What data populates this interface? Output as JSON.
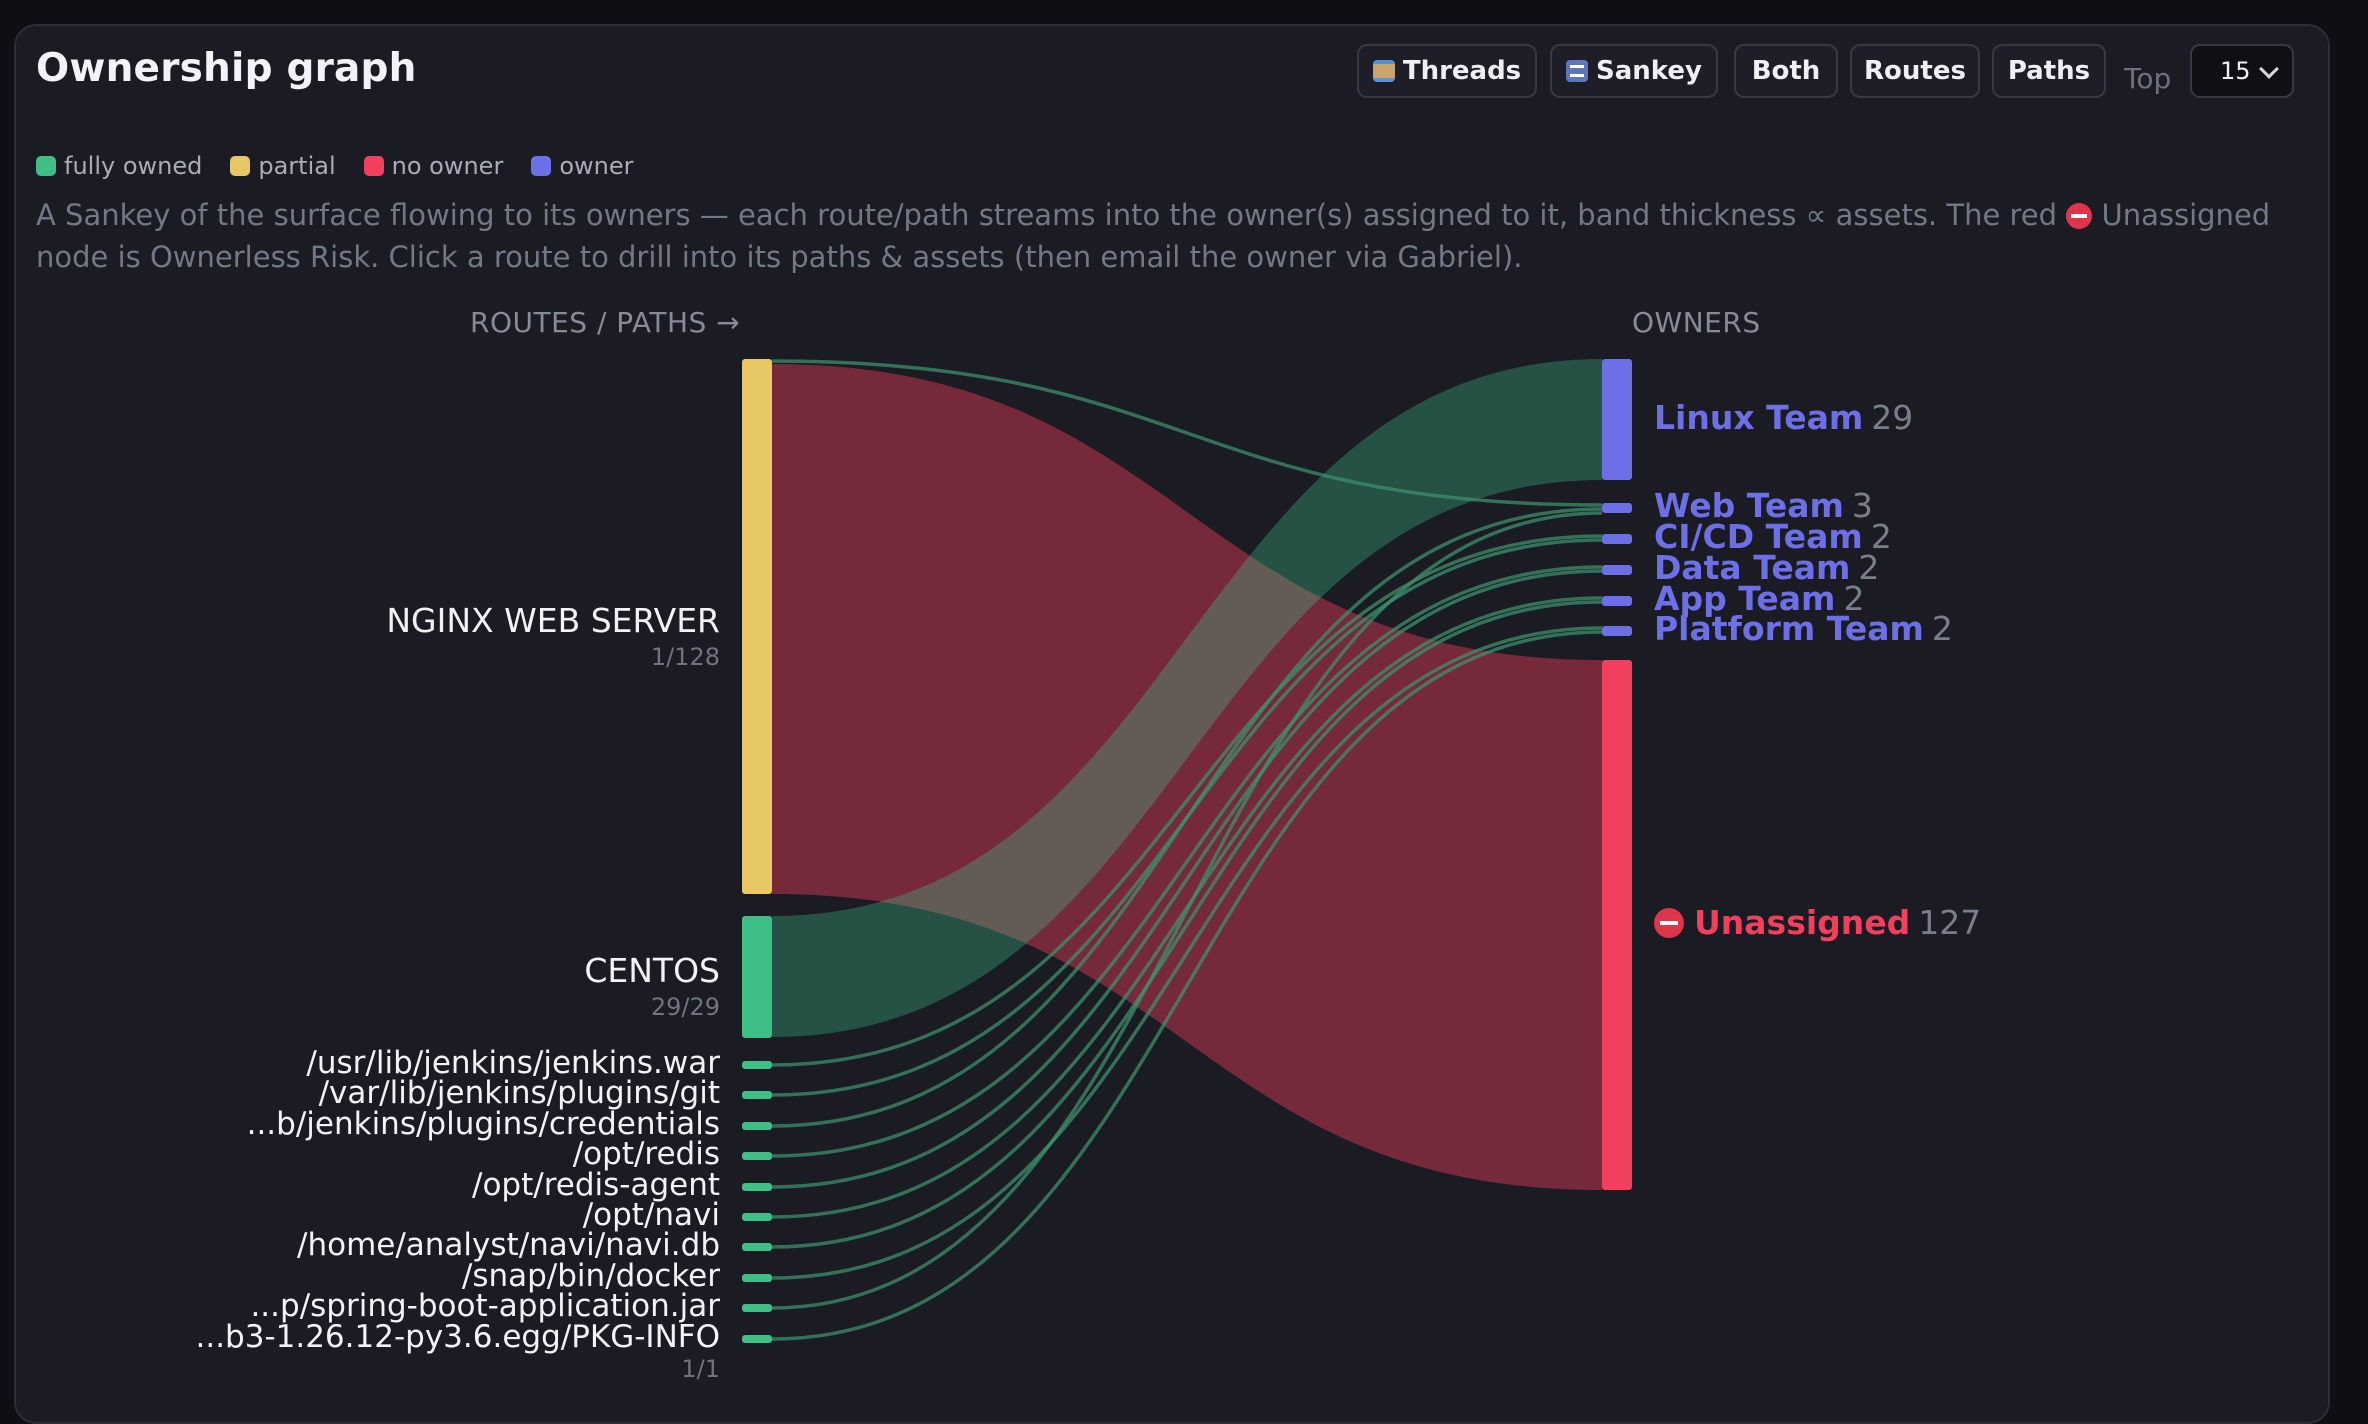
{
  "header": {
    "title": "Ownership graph"
  },
  "toolbar": {
    "buttons": [
      {
        "label": "Threads",
        "icon": "thread-spool-icon"
      },
      {
        "label": "Sankey",
        "icon": "shuffle-icon"
      },
      {
        "label": "Both"
      },
      {
        "label": "Routes"
      },
      {
        "label": "Paths"
      }
    ],
    "top_label": "Top",
    "top_value": "15"
  },
  "legend": [
    {
      "label": "fully owned",
      "color": "#3fbf86"
    },
    {
      "label": "partial",
      "color": "#e8c766"
    },
    {
      "label": "no owner",
      "color": "#f23f5e"
    },
    {
      "label": "owner",
      "color": "#6d6fe6"
    }
  ],
  "description": {
    "part1": "A Sankey of the surface flowing to its owners — each route/path streams into the owner(s) assigned to it, band thickness ∝ assets. The red",
    "part2": "Unassigned node is Ownerless Risk. Click a route to drill into its paths & assets (then email the owner via Gabriel)."
  },
  "columns": {
    "left": "ROUTES / PATHS →",
    "right": "OWNERS"
  },
  "sources": [
    {
      "label": "NGINX WEB SERVER",
      "sub": "1/128",
      "status": "partial",
      "assets": 128
    },
    {
      "label": "CENTOS",
      "sub": "29/29",
      "status": "fully owned",
      "assets": 29
    },
    {
      "label": "/usr/lib/jenkins/jenkins.war",
      "status": "fully owned",
      "assets": 1
    },
    {
      "label": "/var/lib/jenkins/plugins/git",
      "status": "fully owned",
      "assets": 1
    },
    {
      "label": "...b/jenkins/plugins/credentials",
      "status": "fully owned",
      "assets": 1
    },
    {
      "label": "/opt/redis",
      "status": "fully owned",
      "assets": 1
    },
    {
      "label": "/opt/redis-agent",
      "status": "fully owned",
      "assets": 1
    },
    {
      "label": "/opt/navi",
      "status": "fully owned",
      "assets": 1
    },
    {
      "label": "/home/analyst/navi/navi.db",
      "status": "fully owned",
      "assets": 1
    },
    {
      "label": "/snap/bin/docker",
      "status": "fully owned",
      "assets": 1
    },
    {
      "label": "...p/spring-boot-application.jar",
      "status": "fully owned",
      "assets": 1
    },
    {
      "label": "...b3-1.26.12-py3.6.egg/PKG-INFO",
      "sub": "1/1",
      "status": "fully owned",
      "assets": 1
    }
  ],
  "owners": [
    {
      "label": "Linux Team",
      "count": "29"
    },
    {
      "label": "Web Team",
      "count": "3"
    },
    {
      "label": "CI/CD Team",
      "count": "2"
    },
    {
      "label": "Data Team",
      "count": "2"
    },
    {
      "label": "App Team",
      "count": "2"
    },
    {
      "label": "Platform Team",
      "count": "2"
    },
    {
      "label": "Unassigned",
      "count": "127",
      "icon": "no-entry-icon"
    }
  ],
  "flows": [
    {
      "from": 0,
      "to": 6,
      "value": 127
    },
    {
      "from": 0,
      "to": 1,
      "value": 1
    },
    {
      "from": 1,
      "to": 0,
      "value": 29
    },
    {
      "from": 2,
      "to": 2,
      "value": 1
    },
    {
      "from": 3,
      "to": 2,
      "value": 1
    },
    {
      "from": 4,
      "to": 1,
      "value": 1
    },
    {
      "from": 5,
      "to": 3,
      "value": 1
    },
    {
      "from": 6,
      "to": 3,
      "value": 1
    },
    {
      "from": 7,
      "to": 4,
      "value": 1
    },
    {
      "from": 8,
      "to": 4,
      "value": 1
    },
    {
      "from": 9,
      "to": 5,
      "value": 1
    },
    {
      "from": 10,
      "to": 1,
      "value": 1
    },
    {
      "from": 11,
      "to": 5,
      "value": 1
    }
  ]
}
